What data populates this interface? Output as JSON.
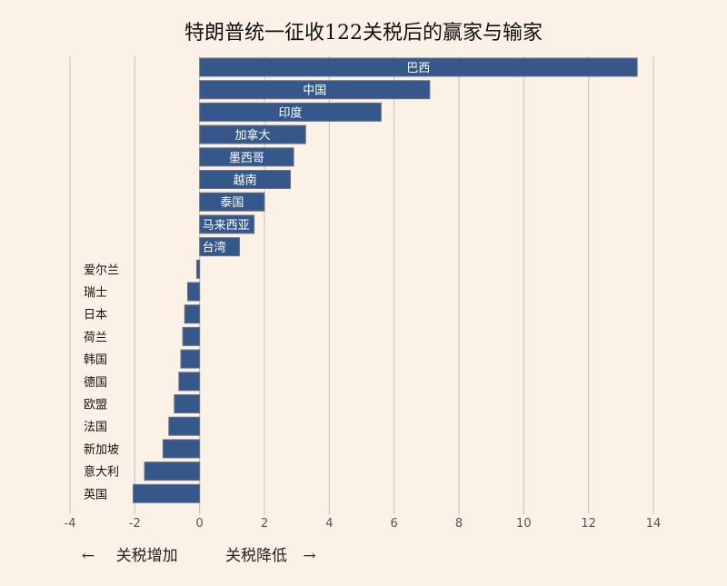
{
  "chart_data": {
    "type": "bar",
    "orientation": "horizontal",
    "title": "特朗普统一征收122关税后的赢家与输家",
    "categories": [
      "巴西",
      "中国",
      "印度",
      "加拿大",
      "墨西哥",
      "越南",
      "泰国",
      "马来西亚",
      "台湾",
      "爱尔兰",
      "瑞士",
      "日本",
      "荷兰",
      "韩国",
      "德国",
      "欧盟",
      "法国",
      "新加坡",
      "意大利",
      "英国"
    ],
    "values": [
      13.5,
      7.1,
      5.6,
      3.27,
      2.9,
      2.8,
      2.0,
      1.68,
      1.23,
      -0.09,
      -0.37,
      -0.46,
      -0.52,
      -0.58,
      -0.64,
      -0.78,
      -0.95,
      -1.13,
      -1.7,
      -2.05
    ],
    "xlim": [
      -4,
      14
    ],
    "xticks": [
      "-4",
      "-2",
      "0",
      "2",
      "4",
      "6",
      "8",
      "10",
      "12",
      "14"
    ],
    "grid": true,
    "bar_color": "#36578a",
    "annotations": {
      "left": "关税增加",
      "right": "关税降低",
      "left_arrow": "←",
      "right_arrow": "→"
    }
  }
}
